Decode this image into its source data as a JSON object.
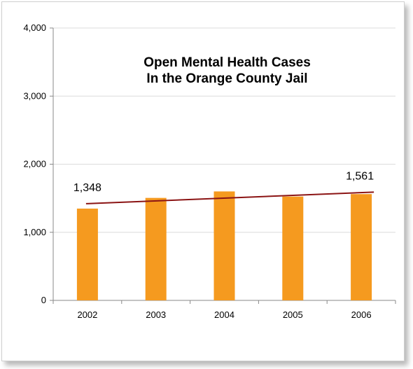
{
  "chart_data": {
    "type": "bar",
    "title_lines": [
      "Open Mental Health Cases",
      "In the Orange County Jail"
    ],
    "categories": [
      "2002",
      "2003",
      "2004",
      "2005",
      "2006"
    ],
    "values": [
      1348,
      1505,
      1600,
      1525,
      1561
    ],
    "ylim": [
      0,
      4000
    ],
    "yticks": [
      0,
      1000,
      2000,
      3000,
      4000
    ],
    "ytick_labels": [
      "0",
      "1,000",
      "2,000",
      "3,000",
      "4,000"
    ],
    "grid": true,
    "trendline": {
      "start": 1420,
      "end": 1590
    },
    "annotations": [
      {
        "text": "1,348",
        "category": "2002"
      },
      {
        "text": "1,561",
        "category": "2006"
      }
    ],
    "colors": {
      "bar": "#f59a1f",
      "trend": "#8b1414",
      "grid": "#dcdcdc",
      "axis": "#888888"
    }
  }
}
